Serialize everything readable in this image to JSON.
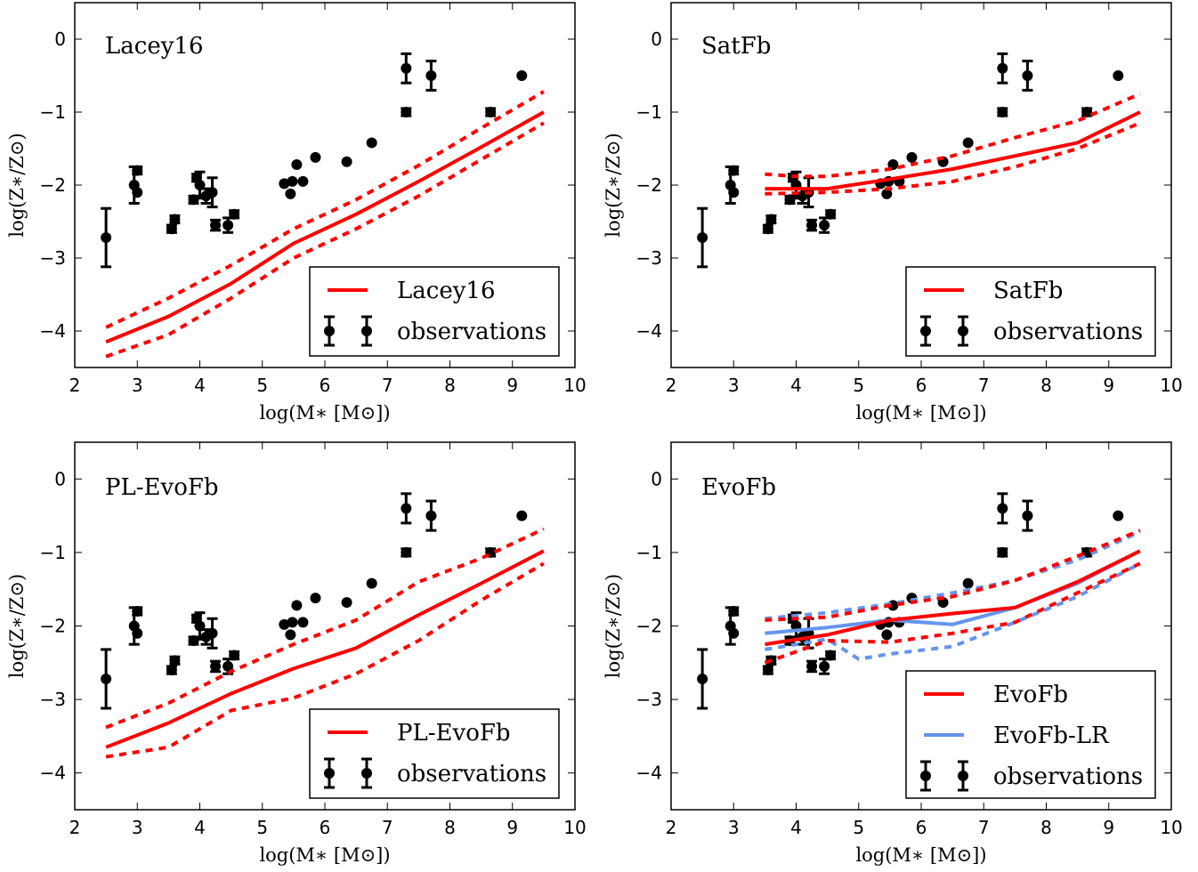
{
  "chart_data": [
    {
      "type": "line",
      "title": "Lacey16",
      "xlabel": "log(M_* [M_⊙])",
      "ylabel": "log(Z_*/Z_⊙)",
      "xlim": [
        2,
        10
      ],
      "ylim": [
        -4.5,
        0.5
      ],
      "xticks": [
        "2",
        "3",
        "4",
        "5",
        "6",
        "7",
        "8",
        "9",
        "10"
      ],
      "yticks": [
        "0",
        "−1",
        "−2",
        "−3",
        "−4"
      ],
      "legend_position": "lower-right",
      "series": [
        {
          "name": "Lacey16",
          "color": "#ff0000",
          "style": "solid",
          "x": [
            2.5,
            3.5,
            4.5,
            5.5,
            6.5,
            7.5,
            8.5,
            9.5
          ],
          "y": [
            -4.15,
            -3.8,
            -3.35,
            -2.8,
            -2.4,
            -1.95,
            -1.48,
            -1.0
          ]
        },
        {
          "name": "",
          "color": "#ff0000",
          "style": "dashed",
          "x": [
            2.5,
            3.5,
            4.5,
            5.5,
            6.5,
            7.5,
            8.5,
            9.5
          ],
          "y": [
            -3.95,
            -3.55,
            -3.1,
            -2.6,
            -2.2,
            -1.73,
            -1.22,
            -0.72
          ]
        },
        {
          "name": "",
          "color": "#ff0000",
          "style": "dashed",
          "x": [
            2.5,
            3.5,
            4.5,
            5.5,
            6.5,
            7.5,
            8.5,
            9.5
          ],
          "y": [
            -4.35,
            -4.05,
            -3.55,
            -3.0,
            -2.6,
            -2.15,
            -1.65,
            -1.15
          ]
        }
      ],
      "legend": [
        {
          "label": "Lacey16",
          "kind": "line",
          "color": "#ff0000"
        },
        {
          "label": "observations",
          "kind": "errorbar",
          "color": "#000000"
        }
      ]
    },
    {
      "type": "line",
      "title": "SatFb",
      "xlabel": "log(M_* [M_⊙])",
      "ylabel": "log(Z_*/Z_⊙)",
      "xlim": [
        2,
        10
      ],
      "ylim": [
        -4.5,
        0.5
      ],
      "xticks": [
        "2",
        "3",
        "4",
        "5",
        "6",
        "7",
        "8",
        "9",
        "10"
      ],
      "yticks": [
        "0",
        "−1",
        "−2",
        "−3",
        "−4"
      ],
      "legend_position": "lower-right",
      "series": [
        {
          "name": "SatFb",
          "color": "#ff0000",
          "style": "solid",
          "x": [
            3.5,
            4.5,
            5.5,
            6.5,
            7.5,
            8.5,
            9.5
          ],
          "y": [
            -2.05,
            -2.05,
            -1.92,
            -1.78,
            -1.6,
            -1.42,
            -1.0
          ]
        },
        {
          "name": "",
          "color": "#ff0000",
          "style": "dashed",
          "x": [
            3.5,
            4.0,
            4.5,
            5.5,
            6.5,
            7.5,
            8.5,
            9.5
          ],
          "y": [
            -1.85,
            -1.88,
            -1.88,
            -1.78,
            -1.6,
            -1.35,
            -1.12,
            -0.75
          ]
        },
        {
          "name": "",
          "color": "#ff0000",
          "style": "dashed",
          "x": [
            3.5,
            4.5,
            5.5,
            6.5,
            7.5,
            8.5,
            9.5
          ],
          "y": [
            -2.12,
            -2.1,
            -2.05,
            -1.95,
            -1.75,
            -1.5,
            -1.15
          ]
        }
      ],
      "legend": [
        {
          "label": "SatFb",
          "kind": "line",
          "color": "#ff0000"
        },
        {
          "label": "observations",
          "kind": "errorbar",
          "color": "#000000"
        }
      ]
    },
    {
      "type": "line",
      "title": "PL-EvoFb",
      "xlabel": "log(M_* [M_⊙])",
      "ylabel": "log(Z_*/Z_⊙)",
      "xlim": [
        2,
        10
      ],
      "ylim": [
        -4.5,
        0.5
      ],
      "xticks": [
        "2",
        "3",
        "4",
        "5",
        "6",
        "7",
        "8",
        "9",
        "10"
      ],
      "yticks": [
        "0",
        "−1",
        "−2",
        "−3",
        "−4"
      ],
      "legend_position": "lower-right",
      "series": [
        {
          "name": "PL-EvoFb",
          "color": "#ff0000",
          "style": "solid",
          "x": [
            2.5,
            3.5,
            4.5,
            5.5,
            6.5,
            7.5,
            8.5,
            9.5
          ],
          "y": [
            -3.65,
            -3.32,
            -2.92,
            -2.58,
            -2.3,
            -1.85,
            -1.42,
            -0.98
          ]
        },
        {
          "name": "",
          "color": "#ff0000",
          "style": "dashed",
          "x": [
            2.5,
            3.5,
            4.5,
            5.5,
            6.5,
            7.5,
            8.5,
            9.5
          ],
          "y": [
            -3.38,
            -3.05,
            -2.62,
            -2.25,
            -1.92,
            -1.4,
            -1.08,
            -0.68
          ]
        },
        {
          "name": "",
          "color": "#ff0000",
          "style": "dashed",
          "x": [
            2.5,
            3.5,
            4.5,
            5.5,
            6.5,
            7.5,
            8.5,
            9.5
          ],
          "y": [
            -3.78,
            -3.65,
            -3.15,
            -2.98,
            -2.65,
            -2.2,
            -1.65,
            -1.15
          ]
        }
      ],
      "legend": [
        {
          "label": "PL-EvoFb",
          "kind": "line",
          "color": "#ff0000"
        },
        {
          "label": "observations",
          "kind": "errorbar",
          "color": "#000000"
        }
      ]
    },
    {
      "type": "line",
      "title": "EvoFb",
      "xlabel": "log(M_* [M_⊙])",
      "ylabel": "log(Z_*/Z_⊙)",
      "xlim": [
        2,
        10
      ],
      "ylim": [
        -4.5,
        0.5
      ],
      "xticks": [
        "2",
        "3",
        "4",
        "5",
        "6",
        "7",
        "8",
        "9",
        "10"
      ],
      "yticks": [
        "0",
        "−1",
        "−2",
        "−3",
        "−4"
      ],
      "legend_position": "lower-right",
      "series": [
        {
          "name": "EvoFb-LR",
          "color": "#6495ed",
          "style": "solid",
          "x": [
            3.5,
            4.5,
            5.5,
            6.5,
            7.5,
            8.5,
            9.5
          ],
          "y": [
            -2.1,
            -2.02,
            -1.92,
            -1.98,
            -1.75,
            -1.42,
            -0.98
          ]
        },
        {
          "name": "",
          "color": "#6495ed",
          "style": "dashed",
          "x": [
            3.5,
            4.5,
            5.5,
            6.5,
            7.5,
            8.5,
            9.5
          ],
          "y": [
            -1.9,
            -1.82,
            -1.7,
            -1.55,
            -1.38,
            -1.1,
            -0.72
          ]
        },
        {
          "name": "",
          "color": "#6495ed",
          "style": "dashed",
          "x": [
            3.5,
            4.5,
            5.0,
            5.5,
            6.5,
            7.5,
            8.5,
            9.5
          ],
          "y": [
            -2.32,
            -2.18,
            -2.45,
            -2.38,
            -2.28,
            -1.95,
            -1.6,
            -1.15
          ]
        },
        {
          "name": "EvoFb",
          "color": "#ff0000",
          "style": "solid",
          "x": [
            3.5,
            4.5,
            5.5,
            6.5,
            7.5,
            8.5,
            9.5
          ],
          "y": [
            -2.25,
            -2.12,
            -1.92,
            -1.83,
            -1.75,
            -1.4,
            -0.98
          ]
        },
        {
          "name": "",
          "color": "#ff0000",
          "style": "dashed",
          "x": [
            3.5,
            4.5,
            5.5,
            6.5,
            7.5,
            8.5,
            9.5
          ],
          "y": [
            -1.92,
            -1.88,
            -1.72,
            -1.6,
            -1.38,
            -1.05,
            -0.7
          ]
        },
        {
          "name": "",
          "color": "#ff0000",
          "style": "dashed",
          "x": [
            3.5,
            4.5,
            5.5,
            6.5,
            7.5,
            8.5,
            9.5
          ],
          "y": [
            -2.5,
            -2.2,
            -2.22,
            -2.1,
            -1.95,
            -1.55,
            -1.15
          ]
        }
      ],
      "legend": [
        {
          "label": "EvoFb",
          "kind": "line",
          "color": "#ff0000"
        },
        {
          "label": "EvoFb-LR",
          "kind": "line",
          "color": "#6495ed"
        },
        {
          "label": "observations",
          "kind": "errorbar",
          "color": "#000000"
        }
      ]
    }
  ],
  "observations": {
    "name": "observations",
    "color": "#000000",
    "points": [
      {
        "x": 2.5,
        "y": -2.72,
        "err": 0.4
      },
      {
        "x": 2.95,
        "y": -2.0,
        "err": 0.25
      },
      {
        "x": 3.0,
        "y": -2.1,
        "err": 0
      },
      {
        "x": 3.0,
        "y": -1.8,
        "err": 0.05
      },
      {
        "x": 3.55,
        "y": -2.6,
        "err": 0.05
      },
      {
        "x": 3.6,
        "y": -2.47,
        "err": 0.05
      },
      {
        "x": 3.9,
        "y": -2.2,
        "err": 0.05
      },
      {
        "x": 3.95,
        "y": -1.9,
        "err": 0.05
      },
      {
        "x": 4.0,
        "y": -2.0,
        "err": 0.18
      },
      {
        "x": 4.1,
        "y": -2.15,
        "err": 0.1
      },
      {
        "x": 4.2,
        "y": -2.1,
        "err": 0.2
      },
      {
        "x": 4.25,
        "y": -2.55,
        "err": 0.07
      },
      {
        "x": 4.45,
        "y": -2.55,
        "err": 0.1
      },
      {
        "x": 4.55,
        "y": -2.4,
        "err": 0.05
      },
      {
        "x": 5.35,
        "y": -1.98,
        "err": 0
      },
      {
        "x": 5.45,
        "y": -2.12,
        "err": 0
      },
      {
        "x": 5.48,
        "y": -1.95,
        "err": 0
      },
      {
        "x": 5.55,
        "y": -1.72,
        "err": 0
      },
      {
        "x": 5.65,
        "y": -1.95,
        "err": 0
      },
      {
        "x": 5.85,
        "y": -1.62,
        "err": 0
      },
      {
        "x": 6.35,
        "y": -1.68,
        "err": 0
      },
      {
        "x": 6.75,
        "y": -1.42,
        "err": 0
      },
      {
        "x": 7.3,
        "y": -1.0,
        "err": 0.05
      },
      {
        "x": 7.3,
        "y": -0.4,
        "err": 0.2
      },
      {
        "x": 7.7,
        "y": -0.5,
        "err": 0.2
      },
      {
        "x": 8.65,
        "y": -1.0,
        "err": 0.05
      },
      {
        "x": 9.15,
        "y": -0.5,
        "err": 0
      }
    ]
  }
}
